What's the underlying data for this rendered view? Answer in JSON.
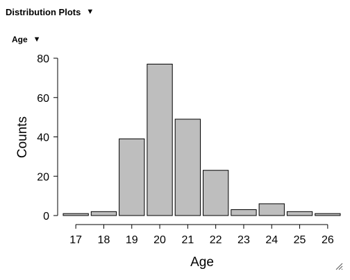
{
  "header": {
    "section_title": "Distribution Plots",
    "variable_title": "Age",
    "section_toggle_icon": "triangle-down-icon",
    "variable_toggle_icon": "triangle-down-icon",
    "resize_icon": "resize-grip-icon"
  },
  "chart_data": {
    "type": "bar",
    "title": "",
    "xlabel": "Age",
    "ylabel": "Counts",
    "categories": [
      "17",
      "18",
      "19",
      "20",
      "21",
      "22",
      "23",
      "24",
      "25",
      "26"
    ],
    "values": [
      1,
      2,
      39,
      77,
      49,
      23,
      3,
      6,
      2,
      1
    ],
    "ylim": [
      0,
      80
    ],
    "yticks": [
      0,
      20,
      40,
      60,
      80
    ],
    "grid": false,
    "legend": "none",
    "colors": {
      "bar_fill": "#bebebe",
      "bar_stroke": "#000000"
    }
  }
}
